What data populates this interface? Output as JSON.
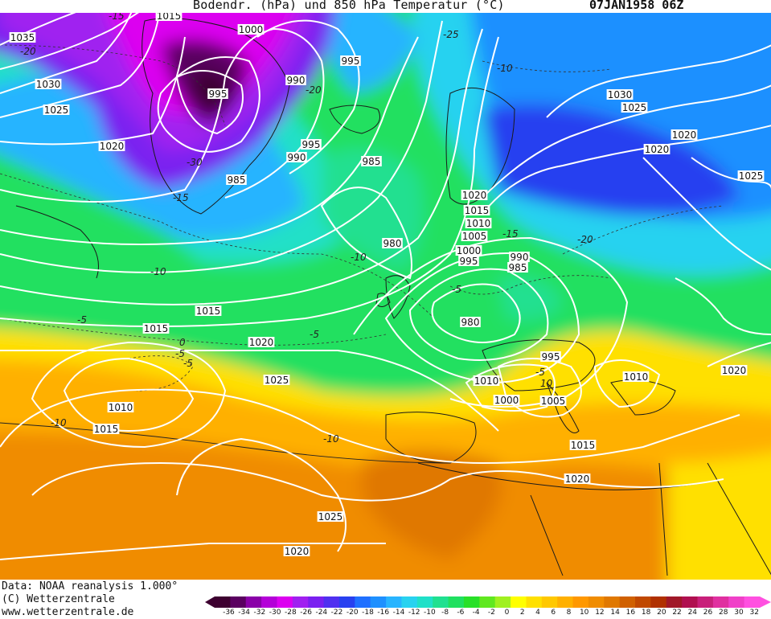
{
  "header": {
    "title": "Bodendr. (hPa) und 850 hPa Temperatur (°C)",
    "date": "07JAN1958 06Z"
  },
  "footer": {
    "credit_data": "Data: NOAA reanalysis 1.000°",
    "credit_copyright": "(C) Wetterzentrale",
    "credit_url": "www.wetterzentrale.de"
  },
  "legend": {
    "ticks": [
      "-36",
      "-34",
      "-32",
      "-30",
      "-28",
      "-26",
      "-24",
      "-22",
      "-20",
      "-18",
      "-16",
      "-14",
      "-12",
      "-10",
      "-8",
      "-6",
      "-4",
      "-2",
      "0",
      "2",
      "4",
      "6",
      "8",
      "10",
      "12",
      "14",
      "16",
      "18",
      "20",
      "22",
      "24",
      "26",
      "28",
      "30",
      "32"
    ],
    "colors": [
      "#3d0030",
      "#5a0060",
      "#8a00a8",
      "#b400d8",
      "#dc00f0",
      "#a020f0",
      "#7a20f0",
      "#5030f0",
      "#2840f0",
      "#2070ff",
      "#1e90ff",
      "#28b4ff",
      "#28d2f0",
      "#20e0c8",
      "#20e090",
      "#20e060",
      "#28e028",
      "#60e820",
      "#a0f020",
      "#ffff00",
      "#ffe000",
      "#ffc800",
      "#ffb000",
      "#ff9800",
      "#f08c00",
      "#e07800",
      "#d06000",
      "#c04800",
      "#b03000",
      "#a01828",
      "#b01050",
      "#c8207a",
      "#e030a0",
      "#f040c8",
      "#ff50e0"
    ]
  },
  "isobars": [
    {
      "label": "1015",
      "cls": "a"
    },
    {
      "label": "1000",
      "cls": "b"
    },
    {
      "label": "1035",
      "cls": "c"
    },
    {
      "label": "995",
      "cls": "d"
    },
    {
      "label": "1030",
      "cls": "e"
    },
    {
      "label": "995",
      "cls": "f"
    },
    {
      "label": "990",
      "cls": "g"
    },
    {
      "label": "1025",
      "cls": "h"
    },
    {
      "label": "1030",
      "cls": "i"
    },
    {
      "label": "1025",
      "cls": "j"
    },
    {
      "label": "1020",
      "cls": "k"
    },
    {
      "label": "1020",
      "cls": "l"
    },
    {
      "label": "995",
      "cls": "m"
    },
    {
      "label": "1020",
      "cls": "n"
    },
    {
      "label": "990",
      "cls": "o"
    },
    {
      "label": "985",
      "cls": "p"
    },
    {
      "label": "985",
      "cls": "q"
    },
    {
      "label": "1025",
      "cls": "r"
    },
    {
      "label": "1020",
      "cls": "s"
    },
    {
      "label": "1015",
      "cls": "t"
    },
    {
      "label": "1010",
      "cls": "u"
    },
    {
      "label": "1005",
      "cls": "v"
    },
    {
      "label": "980",
      "cls": "w"
    },
    {
      "label": "1000",
      "cls": "x"
    },
    {
      "label": "995",
      "cls": "y"
    },
    {
      "label": "990",
      "cls": "z"
    },
    {
      "label": "985",
      "cls": "aa"
    },
    {
      "label": "1015",
      "cls": "ab"
    },
    {
      "label": "980",
      "cls": "ac"
    },
    {
      "label": "1015",
      "cls": "ad"
    },
    {
      "label": "1020",
      "cls": "ae"
    },
    {
      "label": "995",
      "cls": "af"
    },
    {
      "label": "1010",
      "cls": "ag"
    },
    {
      "label": "1010",
      "cls": "ah"
    },
    {
      "label": "1020",
      "cls": "ai"
    },
    {
      "label": "1000",
      "cls": "aj"
    },
    {
      "label": "1005",
      "cls": "ak"
    },
    {
      "label": "1025",
      "cls": "al"
    },
    {
      "label": "1010",
      "cls": "am"
    },
    {
      "label": "1015",
      "cls": "an"
    },
    {
      "label": "1015",
      "cls": "ao"
    },
    {
      "label": "1020",
      "cls": "ap"
    },
    {
      "label": "1025",
      "cls": "aq"
    },
    {
      "label": "1020",
      "cls": "ar"
    }
  ],
  "temp_labels": [
    "-15",
    "-20",
    "-30",
    "-20",
    "-25",
    "-15",
    "-10",
    "-10",
    "-10",
    "-5",
    "-15",
    "-20",
    "-5",
    "-5",
    "-5",
    "-10",
    "0",
    "-5",
    "-5",
    "10",
    "-10"
  ]
}
